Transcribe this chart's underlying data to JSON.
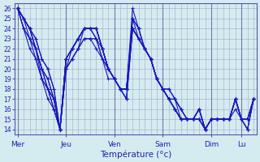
{
  "xlabel": "Température (°c)",
  "days": [
    "Mer",
    "Jeu",
    "Ven",
    "Sam",
    "Dim",
    "Lu"
  ],
  "day_positions": [
    0,
    8,
    16,
    24,
    32,
    37
  ],
  "xlim": [
    -0.5,
    39.5
  ],
  "ylim": [
    13.5,
    26.5
  ],
  "yticks": [
    14,
    15,
    16,
    17,
    18,
    19,
    20,
    21,
    22,
    23,
    24,
    25,
    26
  ],
  "background_color": "#d4ecf0",
  "grid_color": "#a0a8cc",
  "line_color": "#1818bb",
  "series": [
    [
      26,
      25,
      24,
      22,
      19,
      17,
      16,
      14,
      21,
      22,
      23,
      24,
      24,
      24,
      22,
      20,
      19,
      18,
      18,
      26,
      24,
      22,
      21,
      19,
      18,
      17,
      16,
      15,
      15,
      15,
      16,
      14,
      15,
      15,
      15,
      15,
      17,
      15,
      15,
      17
    ],
    [
      26,
      25,
      24,
      22,
      20,
      18,
      16,
      14,
      20,
      21,
      22,
      24,
      24,
      24,
      22,
      20,
      19,
      18,
      17,
      25,
      23,
      22,
      21,
      19,
      18,
      17,
      16,
      15,
      15,
      15,
      16,
      14,
      15,
      15,
      15,
      15,
      17,
      15,
      15,
      17
    ],
    [
      26,
      24,
      23,
      21,
      19,
      18,
      16,
      14,
      20,
      22,
      23,
      24,
      24,
      24,
      22,
      20,
      19,
      18,
      18,
      25,
      24,
      22,
      21,
      19,
      18,
      17,
      16,
      15,
      15,
      15,
      15,
      14,
      15,
      15,
      15,
      15,
      17,
      15,
      15,
      17
    ],
    [
      26,
      24,
      22,
      21,
      19,
      18,
      17,
      14,
      20,
      21,
      22,
      23,
      23,
      23,
      22,
      20,
      19,
      18,
      17,
      24,
      23,
      22,
      21,
      19,
      18,
      17,
      16,
      15,
      15,
      15,
      15,
      14,
      15,
      15,
      15,
      15,
      16,
      15,
      14,
      17
    ],
    [
      26,
      24,
      23,
      22,
      20,
      18,
      17,
      14,
      21,
      22,
      23,
      24,
      24,
      24,
      22,
      20,
      19,
      18,
      18,
      24,
      23,
      22,
      21,
      19,
      18,
      17,
      17,
      15,
      15,
      15,
      15,
      14,
      15,
      15,
      15,
      15,
      17,
      15,
      14,
      17
    ],
    [
      26,
      25,
      23,
      22,
      20,
      19,
      17,
      14,
      20,
      21,
      22,
      23,
      23,
      22,
      21,
      20,
      19,
      18,
      17,
      24,
      23,
      22,
      21,
      19,
      18,
      17,
      16,
      15,
      15,
      15,
      15,
      14,
      15,
      15,
      15,
      15,
      17,
      15,
      14,
      17
    ],
    [
      26,
      25,
      24,
      23,
      21,
      20,
      18,
      14,
      21,
      22,
      23,
      24,
      24,
      23,
      21,
      20,
      19,
      18,
      18,
      24,
      23,
      22,
      21,
      19,
      18,
      18,
      17,
      16,
      15,
      15,
      16,
      14,
      15,
      15,
      15,
      15,
      17,
      15,
      15,
      17
    ],
    [
      26,
      25,
      24,
      23,
      21,
      20,
      18,
      14,
      21,
      22,
      23,
      24,
      24,
      23,
      21,
      19,
      19,
      18,
      18,
      24,
      23,
      22,
      21,
      19,
      18,
      17,
      17,
      16,
      15,
      15,
      16,
      14,
      15,
      15,
      15,
      15,
      17,
      15,
      15,
      17
    ],
    [
      26,
      25,
      24,
      22,
      20,
      19,
      17,
      14,
      21,
      22,
      23,
      24,
      24,
      24,
      22,
      20,
      19,
      18,
      18,
      25,
      24,
      22,
      21,
      19,
      18,
      18,
      17,
      16,
      15,
      15,
      16,
      14,
      15,
      15,
      15,
      15,
      17,
      15,
      15,
      17
    ]
  ]
}
